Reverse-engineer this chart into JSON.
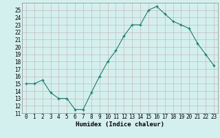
{
  "x": [
    0,
    1,
    2,
    3,
    4,
    5,
    6,
    7,
    8,
    9,
    10,
    11,
    12,
    13,
    14,
    15,
    16,
    17,
    18,
    19,
    20,
    21,
    22,
    23
  ],
  "y": [
    15.0,
    15.0,
    15.5,
    13.8,
    13.0,
    13.0,
    11.5,
    11.5,
    13.8,
    16.0,
    18.0,
    19.5,
    21.5,
    23.0,
    23.0,
    25.0,
    25.5,
    24.5,
    23.5,
    23.0,
    22.5,
    20.5,
    19.0,
    17.5
  ],
  "xlabel": "Humidex (Indice chaleur)",
  "ylim": [
    11,
    26
  ],
  "yticks": [
    11,
    12,
    13,
    14,
    15,
    16,
    17,
    18,
    19,
    20,
    21,
    22,
    23,
    24,
    25
  ],
  "xticks": [
    0,
    1,
    2,
    3,
    4,
    5,
    6,
    7,
    8,
    9,
    10,
    11,
    12,
    13,
    14,
    15,
    16,
    17,
    18,
    19,
    20,
    21,
    22,
    23
  ],
  "line_color": "#1a7a6e",
  "marker": "+",
  "bg_color": "#d4f0ee",
  "grid_color": "#c8b8b8",
  "label_fontsize": 6.5,
  "tick_fontsize": 5.5
}
